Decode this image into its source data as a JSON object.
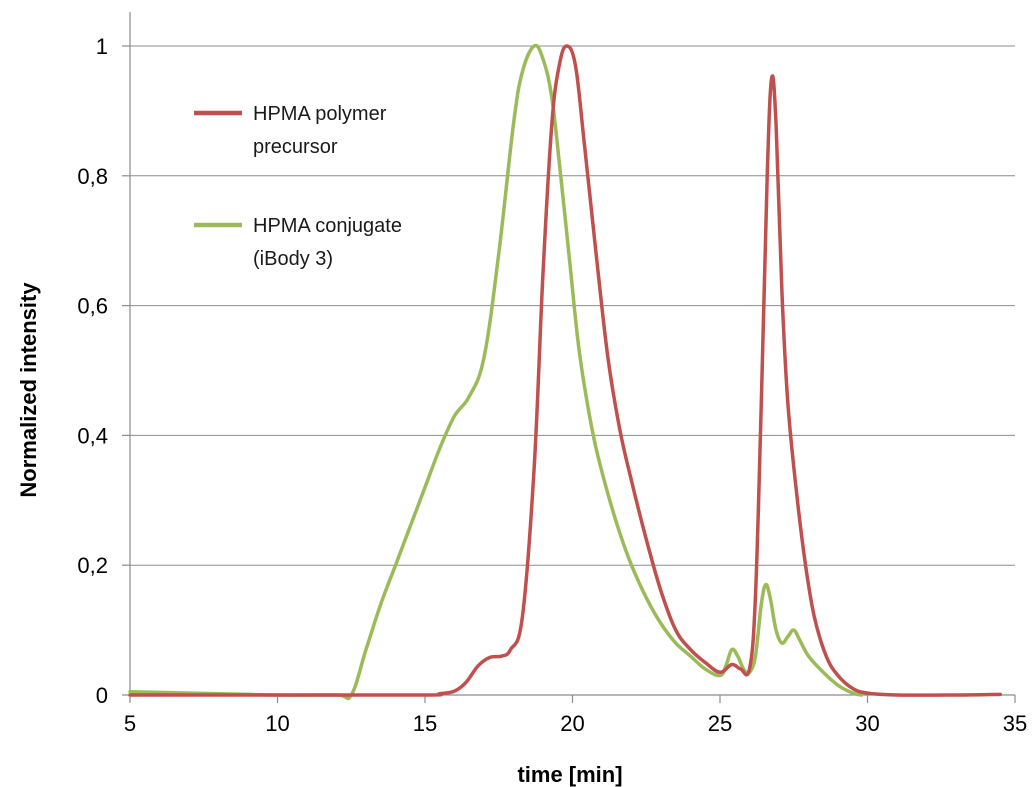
{
  "chart_data": {
    "type": "line",
    "xlabel": "time [min]",
    "ylabel": "Normalized intensity",
    "xlim": [
      5,
      35
    ],
    "ylim": [
      0,
      1
    ],
    "x_ticks": [
      5,
      10,
      15,
      20,
      25,
      30,
      35
    ],
    "x_tick_labels": [
      "5",
      "10",
      "15",
      "20",
      "25",
      "30",
      "35"
    ],
    "y_ticks": [
      0,
      0.2,
      0.4,
      0.6,
      0.8,
      1
    ],
    "y_tick_labels": [
      "0",
      "0,2",
      "0,4",
      "0,6",
      "0,8",
      "1"
    ],
    "grid": "horizontal",
    "legend_position": "top-left",
    "series": [
      {
        "name": "HPMA polymer precursor",
        "legend_lines": [
          "HPMA polymer",
          "precursor"
        ],
        "color": "#c0504d",
        "x": [
          5,
          10,
          15,
          15.5,
          16,
          16.4,
          16.8,
          17.2,
          17.6,
          17.9,
          18.3,
          18.7,
          19.0,
          19.3,
          19.55,
          19.8,
          20.1,
          20.4,
          20.8,
          21.2,
          21.6,
          22.0,
          22.5,
          23.0,
          23.5,
          24.0,
          24.5,
          25.0,
          25.4,
          25.7,
          26.0,
          26.2,
          26.4,
          26.6,
          26.75,
          26.9,
          27.1,
          27.3,
          27.6,
          27.9,
          28.2,
          28.6,
          29.0,
          29.5,
          30.0,
          31,
          33,
          34.5
        ],
        "y": [
          0,
          0,
          0,
          0.002,
          0.006,
          0.02,
          0.045,
          0.058,
          0.06,
          0.07,
          0.12,
          0.35,
          0.65,
          0.88,
          0.97,
          1.0,
          0.97,
          0.85,
          0.68,
          0.52,
          0.41,
          0.33,
          0.24,
          0.16,
          0.1,
          0.07,
          0.05,
          0.035,
          0.047,
          0.04,
          0.04,
          0.15,
          0.45,
          0.8,
          0.95,
          0.88,
          0.62,
          0.45,
          0.31,
          0.2,
          0.12,
          0.06,
          0.03,
          0.01,
          0.003,
          0,
          0,
          0.001
        ]
      },
      {
        "name": "HPMA conjugate (iBody 3)",
        "legend_lines": [
          "HPMA conjugate",
          "(iBody 3)"
        ],
        "color": "#9bbb59",
        "x": [
          5,
          8,
          10,
          12,
          12.5,
          13,
          13.5,
          14,
          14.5,
          15,
          15.5,
          16,
          16.5,
          17,
          17.5,
          18,
          18.3,
          18.7,
          19.0,
          19.3,
          19.6,
          19.9,
          20.2,
          20.5,
          20.8,
          21.2,
          21.6,
          22.0,
          22.5,
          23.0,
          23.5,
          24.0,
          24.5,
          25.0,
          25.2,
          25.4,
          25.6,
          25.8,
          26.0,
          26.2,
          26.4,
          26.55,
          26.7,
          26.9,
          27.1,
          27.3,
          27.5,
          27.7,
          28.0,
          28.5,
          29.0,
          29.5,
          29.8
        ],
        "y": [
          0.005,
          0.002,
          0,
          0,
          0,
          0.07,
          0.14,
          0.2,
          0.26,
          0.32,
          0.38,
          0.43,
          0.46,
          0.52,
          0.68,
          0.88,
          0.96,
          1.0,
          0.98,
          0.92,
          0.8,
          0.67,
          0.54,
          0.45,
          0.38,
          0.31,
          0.25,
          0.2,
          0.15,
          0.11,
          0.08,
          0.06,
          0.04,
          0.03,
          0.045,
          0.07,
          0.06,
          0.04,
          0.035,
          0.06,
          0.14,
          0.17,
          0.15,
          0.1,
          0.08,
          0.09,
          0.1,
          0.085,
          0.06,
          0.035,
          0.015,
          0.003,
          0
        ]
      }
    ]
  }
}
